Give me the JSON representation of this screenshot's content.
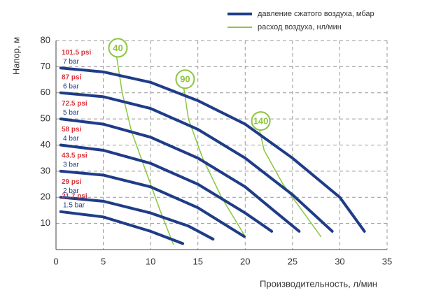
{
  "chart_data": {
    "type": "line",
    "x_label": "Производительность, л/мин",
    "y_label": "Напор, м",
    "xlim": [
      0,
      35
    ],
    "xticks": [
      0,
      5,
      10,
      15,
      20,
      25,
      30,
      35
    ],
    "ylim": [
      0,
      80
    ],
    "yticks": [
      10,
      20,
      30,
      40,
      50,
      60,
      70,
      80
    ],
    "grid": true,
    "legend": [
      {
        "label": "давление сжатого воздуха, мбар",
        "color": "#1f3c88"
      },
      {
        "label": "расход воздуха, нл/мин",
        "color": "#8cc63f"
      }
    ],
    "series": [
      {
        "name": "7 bar",
        "psi_label": "101.5 psi",
        "color": "#1f3c88",
        "x": [
          0.5,
          5,
          10,
          15,
          20,
          25,
          30,
          32.6
        ],
        "values": [
          69.5,
          68,
          64,
          57,
          48,
          35,
          20,
          7
        ]
      },
      {
        "name": "6 bar",
        "psi_label": "87 psi",
        "color": "#1f3c88",
        "x": [
          0.5,
          5,
          10,
          15,
          20,
          25,
          29.2
        ],
        "values": [
          60,
          58.5,
          54,
          46,
          35,
          21,
          7
        ]
      },
      {
        "name": "5 bar",
        "psi_label": "72.5 psi",
        "color": "#1f3c88",
        "x": [
          0.5,
          5,
          10,
          15,
          20,
          23,
          25.7
        ],
        "values": [
          50,
          48,
          43,
          35,
          24,
          15,
          7
        ]
      },
      {
        "name": "4 bar",
        "psi_label": "58 psi",
        "color": "#1f3c88",
        "x": [
          0.5,
          5,
          10,
          15,
          20,
          22.8
        ],
        "values": [
          40,
          38,
          33,
          25,
          14,
          7
        ]
      },
      {
        "name": "3 bar",
        "psi_label": "43.5 psi",
        "color": "#1f3c88",
        "x": [
          0.5,
          5,
          10,
          15,
          19.9
        ],
        "values": [
          30,
          28.5,
          24,
          16,
          5
        ]
      },
      {
        "name": "2 bar",
        "psi_label": "29 psi",
        "color": "#1f3c88",
        "x": [
          0.5,
          5,
          10,
          14,
          16.6
        ],
        "values": [
          20,
          18.5,
          14,
          9,
          4
        ]
      },
      {
        "name": "1.5 bar",
        "psi_label": "21.7 psi",
        "color": "#1f3c88",
        "x": [
          0.5,
          5,
          10,
          13.4
        ],
        "values": [
          14.5,
          12.5,
          7,
          2.3
        ]
      }
    ],
    "flow_series": [
      {
        "name": "40",
        "color": "#8cc63f",
        "x": [
          6.4,
          7,
          8,
          9.5,
          11,
          12.4
        ],
        "values": [
          74,
          60,
          45,
          30,
          15,
          2
        ]
      },
      {
        "name": "90",
        "color": "#8cc63f",
        "x": [
          13.5,
          14,
          15.5,
          17.5,
          20
        ],
        "values": [
          62,
          50,
          35,
          20,
          5
        ]
      },
      {
        "name": "140",
        "color": "#8cc63f",
        "x": [
          21.5,
          22,
          24,
          26,
          28
        ],
        "values": [
          46,
          38,
          25,
          15,
          5
        ]
      }
    ]
  }
}
